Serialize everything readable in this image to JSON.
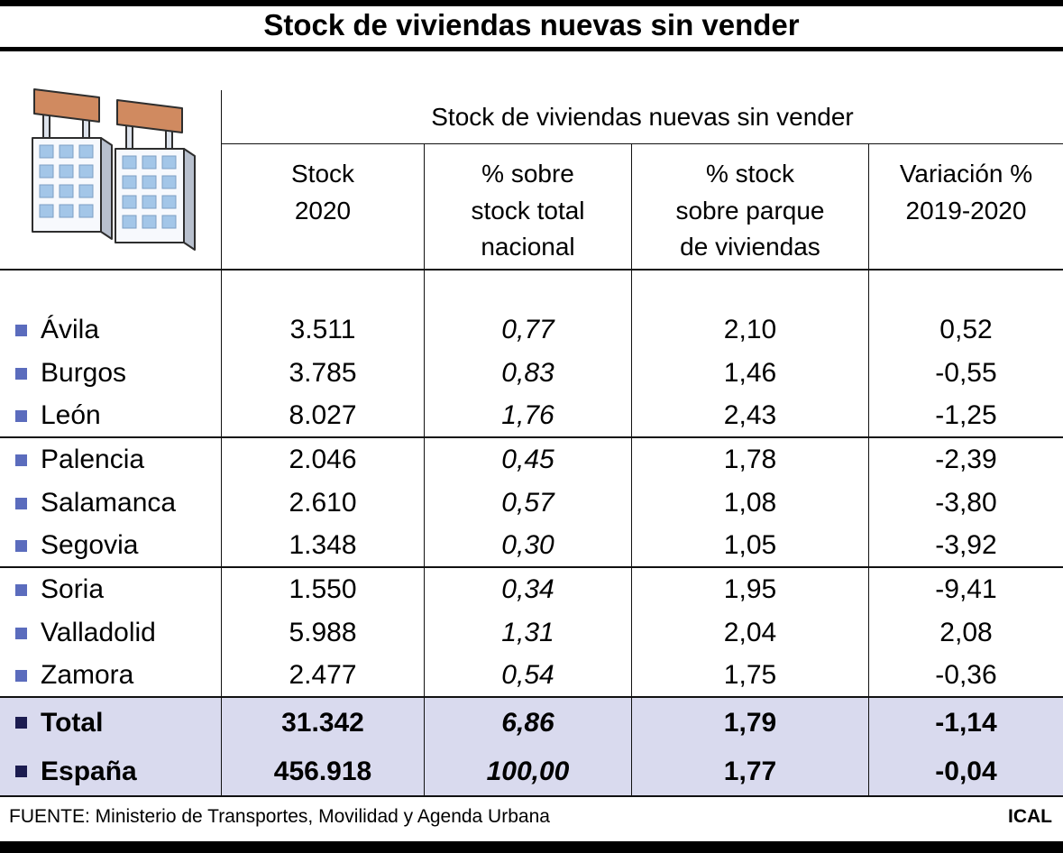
{
  "title": "Stock de viviendas nuevas sin vender",
  "footer": {
    "source": "FUENTE: Ministerio de Transportes, Movilidad y Agenda Urbana",
    "credit": "ICAL"
  },
  "colors": {
    "bullet": "#5b6cbd",
    "bullet_total": "#1c1c50",
    "total_row_bg": "#d9daee",
    "sign": "#d08a60",
    "window": "#a3c6e8"
  },
  "chart_data": {
    "type": "table",
    "title": "Stock de viviendas nuevas sin vender",
    "span_header": "Stock de viviendas nuevas sin vender",
    "columns": [
      "Stock\n2020",
      "% sobre\nstock total\nnacional",
      "% stock\nsobre parque\nde viviendas",
      "Variación %\n2019-2020"
    ],
    "rows": [
      {
        "name": "Ávila",
        "values": [
          "3.511",
          "0,77",
          "2,10",
          "0,52"
        ]
      },
      {
        "name": "Burgos",
        "values": [
          "3.785",
          "0,83",
          "1,46",
          "-0,55"
        ]
      },
      {
        "name": "León",
        "values": [
          "8.027",
          "1,76",
          "2,43",
          "-1,25"
        ]
      },
      {
        "name": "Palencia",
        "values": [
          "2.046",
          "0,45",
          "1,78",
          "-2,39"
        ]
      },
      {
        "name": "Salamanca",
        "values": [
          "2.610",
          "0,57",
          "1,08",
          "-3,80"
        ]
      },
      {
        "name": "Segovia",
        "values": [
          "1.348",
          "0,30",
          "1,05",
          "-3,92"
        ]
      },
      {
        "name": "Soria",
        "values": [
          "1.550",
          "0,34",
          "1,95",
          "-9,41"
        ]
      },
      {
        "name": "Valladolid",
        "values": [
          "5.988",
          "1,31",
          "2,04",
          "2,08"
        ]
      },
      {
        "name": "Zamora",
        "values": [
          "2.477",
          "0,54",
          "1,75",
          "-0,36"
        ]
      }
    ],
    "totals": [
      {
        "name": "Total",
        "values": [
          "31.342",
          "6,86",
          "1,79",
          "-1,14"
        ]
      },
      {
        "name": "España",
        "values": [
          "456.918",
          "100,00",
          "1,77",
          "-0,04"
        ]
      }
    ]
  }
}
